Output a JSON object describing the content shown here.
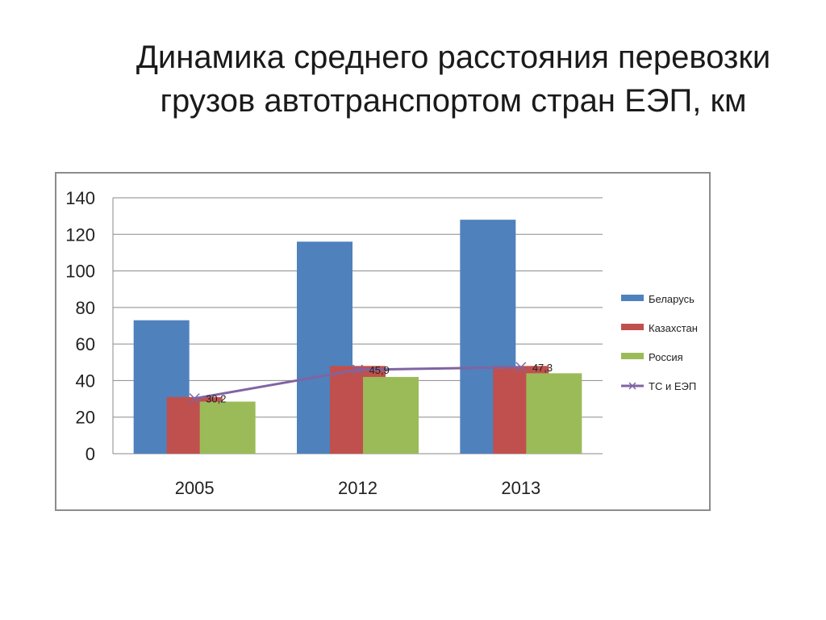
{
  "slide": {
    "title_line1": "Динамика среднего расстояния перевозки",
    "title_line2": "грузов автотранспортом стран ЕЭП, км"
  },
  "chart_data": {
    "type": "bar",
    "title": "",
    "xlabel": "",
    "ylabel": "",
    "categories": [
      "2005",
      "2012",
      "2013"
    ],
    "ylim": [
      0,
      140
    ],
    "yticks": [
      0,
      20,
      40,
      60,
      80,
      100,
      120,
      140
    ],
    "grid": true,
    "legend_position": "right",
    "series": [
      {
        "name": "Беларусь",
        "type": "bar",
        "color": "#4f81bd",
        "values": [
          73,
          116,
          128
        ]
      },
      {
        "name": "Казахстан",
        "type": "bar",
        "color": "#c0504d",
        "values": [
          31,
          48,
          48
        ]
      },
      {
        "name": "Россия",
        "type": "bar",
        "color": "#9bbb59",
        "values": [
          28.5,
          42,
          44
        ]
      },
      {
        "name": "ТС и ЕЭП",
        "type": "line",
        "color": "#8064a2",
        "marker": "x",
        "values": [
          30.2,
          45.9,
          47.3
        ],
        "data_labels": [
          "30,2",
          "45,9",
          "47,3"
        ]
      }
    ]
  }
}
